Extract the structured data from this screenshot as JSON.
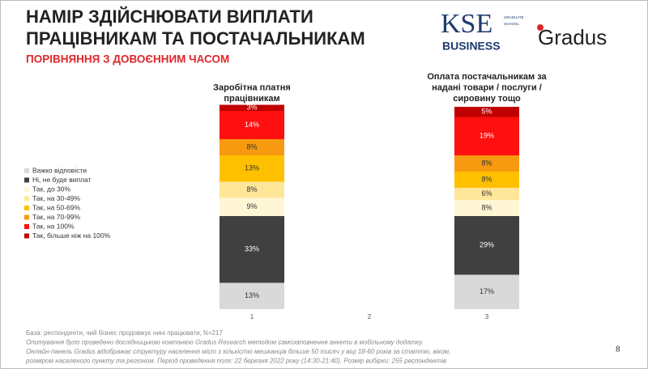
{
  "chart_data": {
    "type": "stacked_bar",
    "title": [
      "НАМІР ЗДІЙСНЮВАТИ ВИПЛАТИ",
      "ПРАЦІВНИКАМ ТА ПОСТАЧАЛЬНИКАМ"
    ],
    "subtitle": "ПОРІВНЯННЯ З ДОВОЄННИМ ЧАСОМ",
    "logos": {
      "kse": "KSE",
      "school": [
        "GRADUATE",
        "SCHOOL"
      ],
      "business": "BUSINESS",
      "gradus": "Gradus"
    },
    "categories": [
      "1",
      "2",
      "3"
    ],
    "column_titles": [
      [
        "Заробітна платня",
        "працівникам"
      ],
      null,
      [
        "Оплата постачальникам за",
        "надані товари / послуги /",
        "сировину тощо"
      ]
    ],
    "series": [
      {
        "name": "Важко відповісти",
        "color": "#d9d9d9",
        "values": [
          13,
          null,
          17
        ],
        "value_labels": [
          "13%",
          null,
          "17%"
        ]
      },
      {
        "name": "Ні, не буде виплат",
        "color": "#404040",
        "values": [
          33,
          null,
          29
        ],
        "value_labels": [
          "33%",
          null,
          "29%"
        ]
      },
      {
        "name": "Так, до 30%",
        "color": "#fff6d5",
        "values": [
          9,
          null,
          8
        ],
        "value_labels": [
          "9%",
          null,
          "8%"
        ]
      },
      {
        "name": "Так, на 30-49%",
        "color": "#ffe699",
        "values": [
          8,
          null,
          6
        ],
        "value_labels": [
          "8%",
          null,
          "6%"
        ]
      },
      {
        "name": "Так, на 50-69%",
        "color": "#ffc000",
        "values": [
          13,
          null,
          8
        ],
        "value_labels": [
          "13%",
          null,
          "8%"
        ]
      },
      {
        "name": "Так, на 70-99%",
        "color": "#f79a10",
        "values": [
          8,
          null,
          8
        ],
        "value_labels": [
          "8%",
          null,
          "8%"
        ]
      },
      {
        "name": "Так, на 100%",
        "color": "#ff1010",
        "values": [
          14,
          null,
          19
        ],
        "value_labels": [
          "14%",
          null,
          "19%"
        ]
      },
      {
        "name": "Так, більше ніж на 100%",
        "color": "#c00000",
        "values": [
          3,
          null,
          5
        ],
        "value_labels": [
          "3%",
          null,
          "5%"
        ]
      }
    ],
    "footnotes": [
      "База: респонденти, чий бізнес продовжує нині працювати, N=217",
      "Опитування було проведено дослідницькою компанією Gradus Research методом самозаповнення анкети в мобільному додатку.",
      "Онлайн-панель Gradus відображає структуру населення міст з кількістю мешканців більше 50 тисяч у віці 18-60 років за статтю, віком,",
      "розміром населеного пункту та регіоном. Період проведення поля: 22 березня 2022 року (14:30-21:40). Розмір вибірки: 255 респондентів"
    ],
    "page_number": "8"
  }
}
